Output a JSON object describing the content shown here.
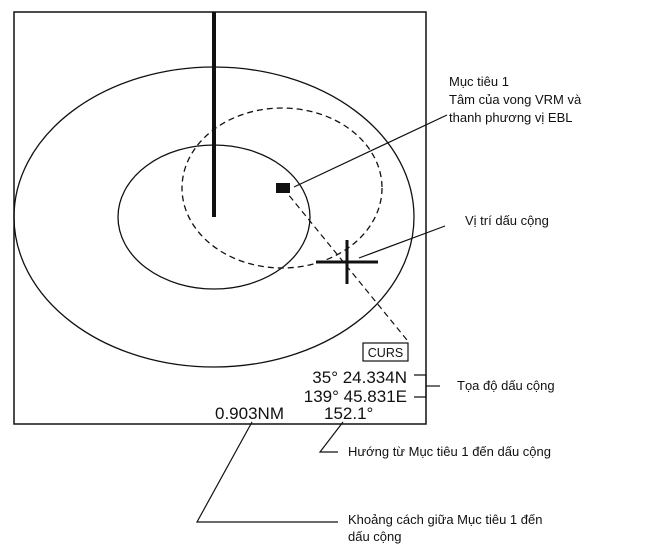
{
  "screen": {
    "curs_label": "CURS",
    "lat": "35° 24.334N",
    "lon": "139° 45.831E",
    "range": "0.903NM",
    "bearing": "152.1°"
  },
  "callouts": {
    "target_line1": "Mục tiêu 1",
    "target_line2": "Tâm của vong VRM và",
    "target_line3": "thanh phương vị EBL",
    "cursor_pos": "Vị trí dấu cộng",
    "cursor_coords": "Tọa độ dấu cộng",
    "bearing_desc": "Hướng từ Mục tiêu 1 đến dấu cộng",
    "range_line1": "Khoảng cách giữa Mục tiêu 1 đến",
    "range_line2": "dấu cộng"
  },
  "colors": {
    "line": "#111111",
    "background": "#ffffff"
  }
}
